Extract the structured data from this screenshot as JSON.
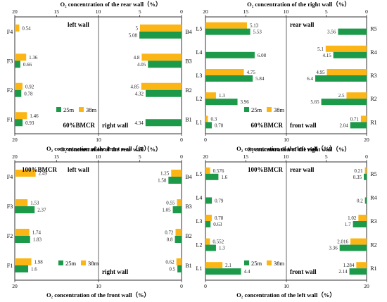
{
  "colors": {
    "series_25m": "#1c9a4a",
    "series_38m": "#fbb616"
  },
  "legend": {
    "series_25m": "25m",
    "series_38m": "38m"
  },
  "chart_data": [
    {
      "type": "bar",
      "orientation": "horizontal",
      "bmcr_label": "60%BMCR",
      "bottom_axis_title": "O₂ concentration of the front wall（%）",
      "top_axis_title": "O₂ concentration of the rear wall（%）",
      "bottom_ticks": [
        "20",
        "10",
        "0"
      ],
      "top_ticks": [
        "20",
        "15",
        "10",
        "5",
        "0"
      ],
      "left_subchart": {
        "wall_label": "left wall",
        "xlim_reversed": [
          20,
          10
        ],
        "categories": [
          "F4",
          "F3",
          "F2",
          "F1"
        ],
        "series": [
          {
            "name": "25m",
            "values": [
              null,
              0.66,
              0.78,
              0.93
            ]
          },
          {
            "name": "38m",
            "values": [
              0.54,
              1.36,
              0.92,
              1.46
            ]
          }
        ]
      },
      "right_subchart": {
        "wall_label": "right wall",
        "xlim": [
          0,
          20
        ],
        "categories": [
          "B4",
          "B3",
          "B2",
          "B1"
        ],
        "series": [
          {
            "name": "25m",
            "values": [
              5.08,
              4.05,
              4.32,
              4.34
            ]
          },
          {
            "name": "38m",
            "values": [
              5.0,
              4.8,
              4.85,
              null
            ]
          }
        ]
      }
    },
    {
      "type": "bar",
      "orientation": "horizontal",
      "bmcr_label": "60%BMCR",
      "bottom_axis_title": "O₂ concentration of the left wall（%）",
      "top_axis_title": "O₂ concentration of the right wall（%）",
      "bottom_ticks": [
        "0",
        "10",
        "20"
      ],
      "top_ticks": [
        "20",
        "15",
        "10",
        "5",
        "0"
      ],
      "left_subchart": {
        "wall_label": "",
        "xlim": [
          0,
          10
        ],
        "categories": [
          "L5",
          "L4",
          "L3",
          "L2",
          "L1"
        ],
        "series": [
          {
            "name": "25m",
            "values": [
              5.53,
              6.08,
              5.84,
              3.96,
              0.78
            ]
          },
          {
            "name": "38m",
            "values": [
              5.13,
              null,
              4.75,
              1.3,
              0.3
            ]
          }
        ]
      },
      "right_subchart": {
        "wall_label_top": "rear wall",
        "wall_label_bottom": "front wall",
        "xlim_reversed": [
          20,
          10
        ],
        "categories": [
          "R5",
          "R4",
          "R3",
          "R2",
          "R1"
        ],
        "series": [
          {
            "name": "25m",
            "values": [
              3.56,
              4.15,
              6.4,
              5.65,
              2.04
            ]
          },
          {
            "name": "38m",
            "values": [
              null,
              5.1,
              4.95,
              2.5,
              0.71
            ]
          }
        ]
      }
    },
    {
      "type": "bar",
      "orientation": "horizontal",
      "bmcr_label": "100%BMCR",
      "bottom_axis_title": "O₂ concentration of the front wall（%）",
      "top_axis_title": "O₂ concentration of the rear wall（%）",
      "bottom_ticks": [
        "20",
        "10",
        "0"
      ],
      "top_ticks": [
        "20",
        "15",
        "10",
        "5",
        "0"
      ],
      "left_subchart": {
        "wall_label": "left wall",
        "xlim_reversed": [
          20,
          10
        ],
        "categories": [
          "F4",
          "F3",
          "F2",
          "F1"
        ],
        "series": [
          {
            "name": "25m",
            "values": [
              null,
              2.37,
              1.83,
              1.6
            ]
          },
          {
            "name": "38m",
            "values": [
              2.49,
              1.53,
              1.74,
              1.98
            ]
          }
        ]
      },
      "right_subchart": {
        "wall_label": "right wall",
        "xlim": [
          0,
          20
        ],
        "categories": [
          "B4",
          "B3",
          "B2",
          "B1"
        ],
        "series": [
          {
            "name": "25m",
            "values": [
              1.58,
              1.05,
              0.8,
              0.5
            ]
          },
          {
            "name": "38m",
            "values": [
              1.25,
              0.55,
              0.72,
              0.62
            ]
          }
        ]
      }
    },
    {
      "type": "bar",
      "orientation": "horizontal",
      "bmcr_label": "100%BMCR",
      "bottom_axis_title": "O₂ concentration of the left wall（%）",
      "top_axis_title": "O₂ concentration of the right wall（%）",
      "bottom_ticks": [
        "0",
        "10",
        "20"
      ],
      "top_ticks": [
        "20",
        "15",
        "10",
        "5",
        "0"
      ],
      "left_subchart": {
        "wall_label": "",
        "xlim": [
          0,
          10
        ],
        "categories": [
          "L5",
          "L4",
          "L3",
          "L2",
          "L1"
        ],
        "series": [
          {
            "name": "25m",
            "values": [
              1.6,
              0.79,
              0.63,
              1.3,
              4.4
            ]
          },
          {
            "name": "38m",
            "values": [
              0.576,
              null,
              0.78,
              0.552,
              2.1
            ]
          }
        ]
      },
      "right_subchart": {
        "wall_label_top": "rear wall",
        "wall_label_bottom": "front wall",
        "xlim_reversed": [
          20,
          10
        ],
        "categories": [
          "R5",
          "R4",
          "R3",
          "R2",
          "R1"
        ],
        "series": [
          {
            "name": "25m",
            "values": [
              0.35,
              0.2,
              1.7,
              3.36,
              2.14
            ]
          },
          {
            "name": "38m",
            "values": [
              0.21,
              null,
              1.02,
              2.016,
              1.284
            ]
          }
        ]
      }
    }
  ]
}
